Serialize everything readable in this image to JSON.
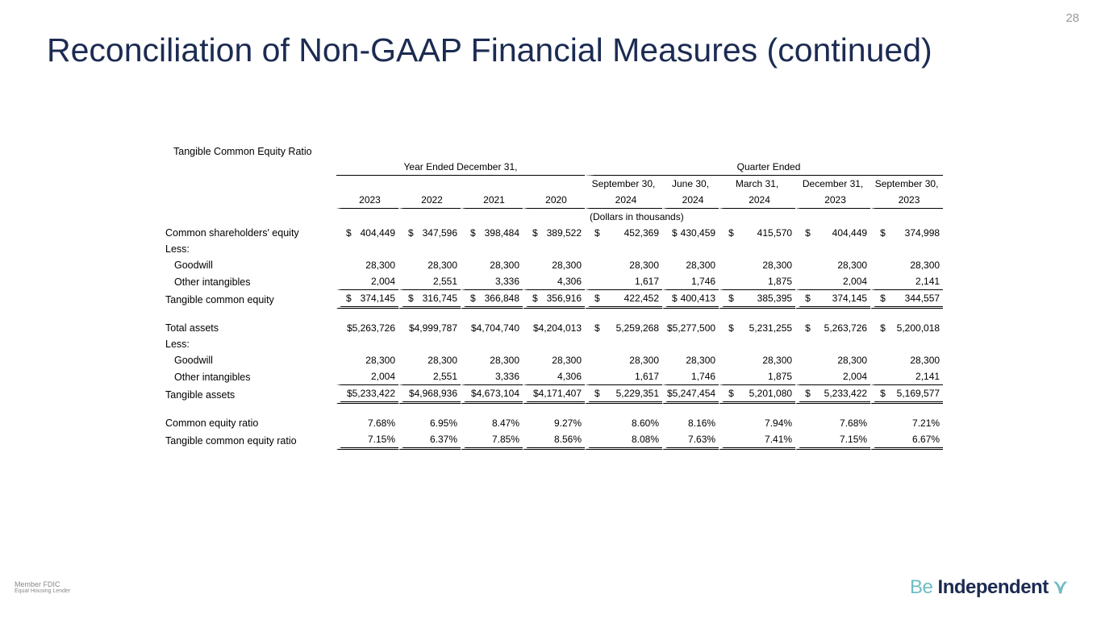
{
  "page_number": "28",
  "title": "Reconciliation of Non-GAAP Financial Measures (continued)",
  "table": {
    "title": "Tangible Common Equity Ratio",
    "group_year": "Year Ended December 31,",
    "group_quarter": "Quarter Ended",
    "col_top": [
      "",
      "",
      "",
      "",
      "September 30,",
      "June 30,",
      "March 31,",
      "December 31,",
      "September 30,"
    ],
    "col_bottom": [
      "2023",
      "2022",
      "2021",
      "2020",
      "2024",
      "2024",
      "2024",
      "2023",
      "2023"
    ],
    "units": "(Dollars in thousands)",
    "rows": [
      {
        "label": "Common shareholders' equity",
        "dollar": true,
        "values": [
          "404,449",
          "347,596",
          "398,484",
          "389,522",
          "452,369",
          "430,459",
          "415,570",
          "404,449",
          "374,998"
        ]
      },
      {
        "label": "Less:",
        "values": []
      },
      {
        "label": "Goodwill",
        "indent": true,
        "values": [
          "28,300",
          "28,300",
          "28,300",
          "28,300",
          "28,300",
          "28,300",
          "28,300",
          "28,300",
          "28,300"
        ]
      },
      {
        "label": "Other intangibles",
        "indent": true,
        "values": [
          "2,004",
          "2,551",
          "3,336",
          "4,306",
          "1,617",
          "1,746",
          "1,875",
          "2,004",
          "2,141"
        ]
      },
      {
        "label": "Tangible common equity",
        "dollar": true,
        "values": [
          "374,145",
          "316,745",
          "366,848",
          "356,916",
          "422,452",
          "400,413",
          "385,395",
          "374,145",
          "344,557"
        ]
      },
      {
        "label": "Total assets",
        "values": [
          "$5,263,726",
          "$4,999,787",
          "$4,704,740",
          "$4,204,013",
          "5,259,268",
          "$5,277,500",
          "5,231,255",
          "5,263,726",
          "5,200,018"
        ]
      },
      {
        "label": "Less:",
        "values": []
      },
      {
        "label": "Goodwill",
        "indent": true,
        "values": [
          "28,300",
          "28,300",
          "28,300",
          "28,300",
          "28,300",
          "28,300",
          "28,300",
          "28,300",
          "28,300"
        ]
      },
      {
        "label": "Other intangibles",
        "indent": true,
        "values": [
          "2,004",
          "2,551",
          "3,336",
          "4,306",
          "1,617",
          "1,746",
          "1,875",
          "2,004",
          "2,141"
        ]
      },
      {
        "label": "Tangible assets",
        "values": [
          "$5,233,422",
          "$4,968,936",
          "$4,673,104",
          "$4,171,407",
          "5,229,351",
          "$5,247,454",
          "5,201,080",
          "5,233,422",
          "5,169,577"
        ]
      },
      {
        "label": "Common equity ratio",
        "values": [
          "7.68%",
          "6.95%",
          "8.47%",
          "9.27%",
          "8.60%",
          "8.16%",
          "7.94%",
          "7.68%",
          "7.21%"
        ]
      },
      {
        "label": "Tangible common equity ratio",
        "values": [
          "7.15%",
          "6.37%",
          "7.85%",
          "8.56%",
          "8.08%",
          "7.63%",
          "7.41%",
          "7.15%",
          "6.67%"
        ]
      }
    ]
  },
  "footer": {
    "fdic": "Member FDIC",
    "equal_housing": "Equal Housing Lender",
    "logo_be": "Be",
    "logo_rest": "Independent"
  },
  "colors": {
    "title": "#1c2b52",
    "logo_accent": "#6fbcc3"
  }
}
